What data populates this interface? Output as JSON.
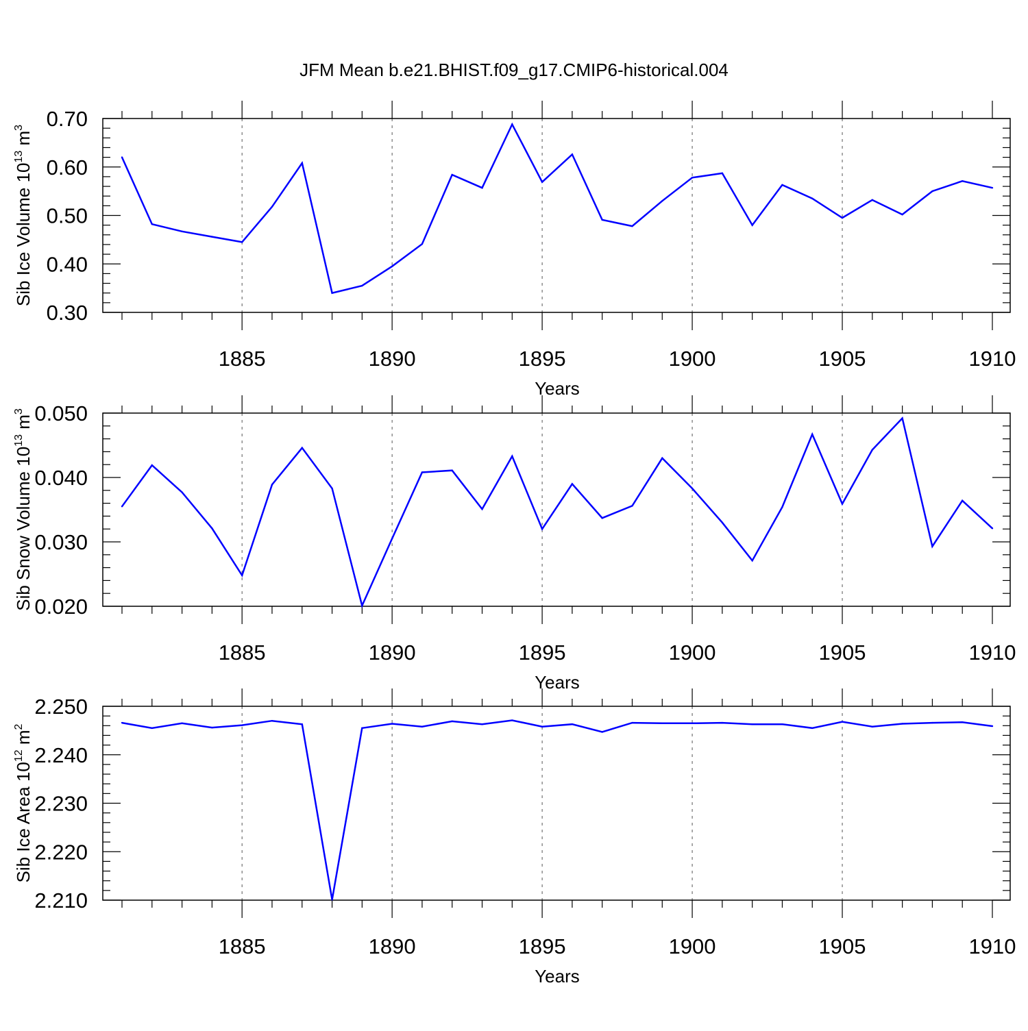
{
  "title": "JFM Mean b.e21.BHIST.f09_g17.CMIP6-historical.004",
  "colors": {
    "line": "#0000ff",
    "axis": "#000000",
    "grid": "#555555"
  },
  "chart_data": [
    {
      "type": "line",
      "xlabel": "Years",
      "ylabel": "Sib Ice Volume 10",
      "ylabel_sup": "13",
      "ylabel_unit": "m",
      "ylabel_unit_sup": "3",
      "xlim": [
        1881,
        1910
      ],
      "ylim": [
        0.3,
        0.7
      ],
      "x_ticks": [
        1885,
        1890,
        1895,
        1900,
        1905,
        1910
      ],
      "x_tick_labels": [
        "1885",
        "1890",
        "1895",
        "1900",
        "1905",
        "1910"
      ],
      "y_ticks": [
        0.3,
        0.4,
        0.5,
        0.6,
        0.7
      ],
      "y_tick_labels": [
        "0.30",
        "0.40",
        "0.50",
        "0.60",
        "0.70"
      ],
      "grid": "vertical dashed at labeled x ticks",
      "x": [
        1881,
        1882,
        1883,
        1884,
        1885,
        1886,
        1887,
        1888,
        1889,
        1890,
        1891,
        1892,
        1893,
        1894,
        1895,
        1896,
        1897,
        1898,
        1899,
        1900,
        1901,
        1902,
        1903,
        1904,
        1905,
        1906,
        1907,
        1908,
        1909,
        1910
      ],
      "values": [
        0.62,
        0.482,
        0.467,
        0.456,
        0.445,
        0.518,
        0.608,
        0.34,
        0.355,
        0.395,
        0.441,
        0.584,
        0.557,
        0.688,
        0.569,
        0.626,
        0.491,
        0.478,
        0.53,
        0.578,
        0.587,
        0.48,
        0.563,
        0.535,
        0.495,
        0.532,
        0.502,
        0.55,
        0.571,
        0.557
      ]
    },
    {
      "type": "line",
      "xlabel": "Years",
      "ylabel": "Sib Snow Volume 10",
      "ylabel_sup": "13",
      "ylabel_unit": "m",
      "ylabel_unit_sup": "3",
      "xlim": [
        1881,
        1910
      ],
      "ylim": [
        0.02,
        0.05
      ],
      "x_ticks": [
        1885,
        1890,
        1895,
        1900,
        1905,
        1910
      ],
      "x_tick_labels": [
        "1885",
        "1890",
        "1895",
        "1900",
        "1905",
        "1910"
      ],
      "y_ticks": [
        0.02,
        0.03,
        0.04,
        0.05
      ],
      "y_tick_labels": [
        "0.020",
        "0.030",
        "0.040",
        "0.050"
      ],
      "grid": "vertical dashed at labeled x ticks",
      "x": [
        1881,
        1882,
        1883,
        1884,
        1885,
        1886,
        1887,
        1888,
        1889,
        1890,
        1891,
        1892,
        1893,
        1894,
        1895,
        1896,
        1897,
        1898,
        1899,
        1900,
        1901,
        1902,
        1903,
        1904,
        1905,
        1906,
        1907,
        1908,
        1909,
        1910
      ],
      "values": [
        0.0355,
        0.0419,
        0.0377,
        0.0321,
        0.0248,
        0.0389,
        0.0446,
        0.0383,
        0.0201,
        0.0305,
        0.0408,
        0.0411,
        0.0351,
        0.0433,
        0.032,
        0.039,
        0.0337,
        0.0356,
        0.043,
        0.0383,
        0.033,
        0.0271,
        0.0354,
        0.0467,
        0.0359,
        0.0443,
        0.0492,
        0.0293,
        0.0364,
        0.0321
      ]
    },
    {
      "type": "line",
      "xlabel": "Years",
      "ylabel": "Sib Ice Area 10",
      "ylabel_sup": "12",
      "ylabel_unit": "m",
      "ylabel_unit_sup": "2",
      "xlim": [
        1881,
        1910
      ],
      "ylim": [
        2.21,
        2.25
      ],
      "x_ticks": [
        1885,
        1890,
        1895,
        1900,
        1905,
        1910
      ],
      "x_tick_labels": [
        "1885",
        "1890",
        "1895",
        "1900",
        "1905",
        "1910"
      ],
      "y_ticks": [
        2.21,
        2.22,
        2.23,
        2.24,
        2.25
      ],
      "y_tick_labels": [
        "2.210",
        "2.220",
        "2.230",
        "2.240",
        "2.250"
      ],
      "grid": "vertical dashed at labeled x ticks",
      "x": [
        1881,
        1882,
        1883,
        1884,
        1885,
        1886,
        1887,
        1888,
        1889,
        1890,
        1891,
        1892,
        1893,
        1894,
        1895,
        1896,
        1897,
        1898,
        1899,
        1900,
        1901,
        1902,
        1903,
        1904,
        1905,
        1906,
        1907,
        1908,
        1909,
        1910
      ],
      "values": [
        2.2466,
        2.2455,
        2.2465,
        2.2456,
        2.2461,
        2.247,
        2.2463,
        2.2101,
        2.2455,
        2.2464,
        2.2458,
        2.2469,
        2.2463,
        2.2471,
        2.2458,
        2.2463,
        2.2447,
        2.2466,
        2.2465,
        2.2465,
        2.2466,
        2.2463,
        2.2463,
        2.2455,
        2.2468,
        2.2458,
        2.2464,
        2.2466,
        2.2467,
        2.2459
      ]
    }
  ]
}
